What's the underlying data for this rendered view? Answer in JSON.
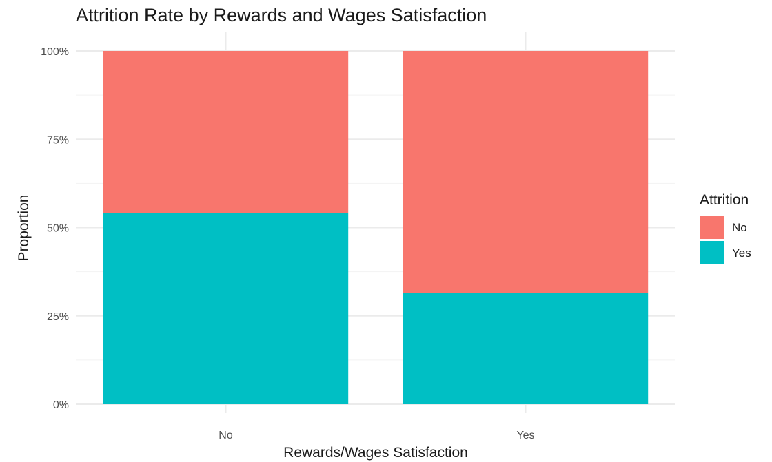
{
  "chart_data": {
    "type": "bar",
    "stacked": true,
    "title": "Attrition Rate by Rewards and Wages Satisfaction",
    "xlabel": "Rewards/Wages Satisfaction",
    "ylabel": "Proportion",
    "categories": [
      "No",
      "Yes"
    ],
    "series": [
      {
        "name": "No",
        "values": [
          0.46,
          0.685
        ],
        "color": "#F8766D"
      },
      {
        "name": "Yes",
        "values": [
          0.54,
          0.315
        ],
        "color": "#00BFC4"
      }
    ],
    "ylim": [
      0,
      1
    ],
    "yticks": [
      0,
      0.25,
      0.5,
      0.75,
      1
    ],
    "ytick_labels": [
      "0%",
      "25%",
      "50%",
      "75%",
      "100%"
    ],
    "legend": {
      "title": "Attrition",
      "placement": "right",
      "entries": [
        "No",
        "Yes"
      ]
    },
    "grid": true
  }
}
